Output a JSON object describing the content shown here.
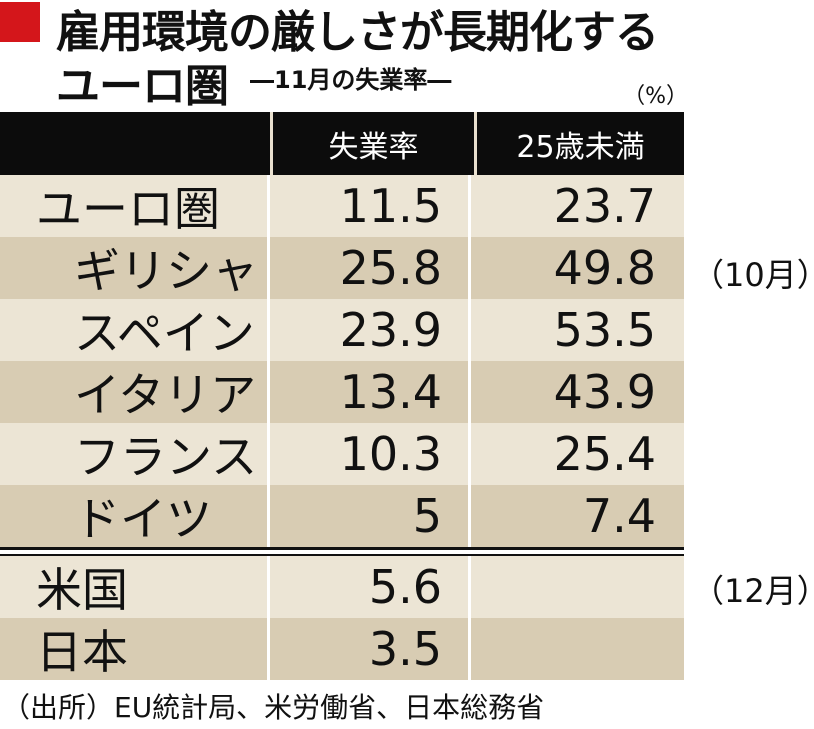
{
  "title": {
    "line1": "雇用環境の厳しさが長期化する",
    "line2": "ユーロ圏",
    "subtitle": "―11月の失業率―",
    "unit": "（%）"
  },
  "table": {
    "headers": [
      "",
      "失業率",
      "25歳未満"
    ],
    "rows": [
      {
        "name": "ユーロ圏",
        "rate": "11.5",
        "under25": "23.7"
      },
      {
        "name": "ギリシャ",
        "rate": "25.8",
        "under25": "49.8"
      },
      {
        "name": "スペイン",
        "rate": "23.9",
        "under25": "53.5"
      },
      {
        "name": "イタリア",
        "rate": "13.4",
        "under25": "43.9"
      },
      {
        "name": "フランス",
        "rate": "10.3",
        "under25": "25.4"
      },
      {
        "name": "ドイツ",
        "rate": "5",
        "under25": "7.4"
      },
      {
        "name": "米国",
        "rate": "5.6",
        "under25": ""
      },
      {
        "name": "日本",
        "rate": "3.5",
        "under25": ""
      }
    ]
  },
  "notes": {
    "greece": "（10月）",
    "us": "（12月）"
  },
  "source": "（出所）EU統計局、米労働省、日本総務省",
  "colors": {
    "accent": "#d4161b",
    "header_bg": "#0c0c0c",
    "row_light": "#ece5d5",
    "row_dark": "#d8ccb3"
  }
}
